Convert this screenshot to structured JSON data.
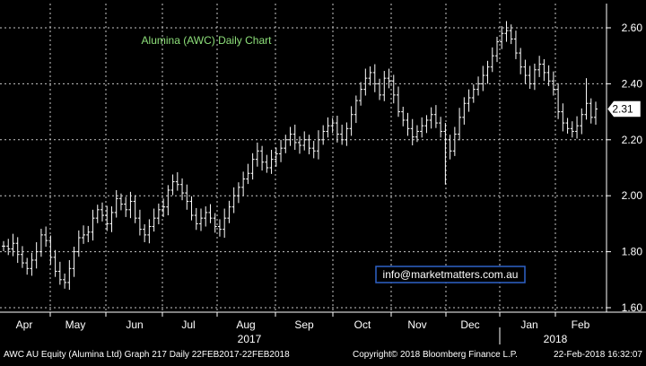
{
  "chart_data": {
    "type": "ohlc",
    "title": "Alumina (AWC) Daily Chart",
    "watermark": "info@marketmatters.com.au",
    "ylim": [
      1.6,
      2.65
    ],
    "yticks": [
      "2.60",
      "2.40",
      "2.20",
      "2.00",
      "1.80",
      "1.60"
    ],
    "ytick_values": [
      2.6,
      2.4,
      2.2,
      2.0,
      1.8,
      1.6
    ],
    "last_price": "2.31",
    "last_price_value": 2.31,
    "months": [
      "Apr",
      "May",
      "Jun",
      "Jul",
      "Aug",
      "Sep",
      "Oct",
      "Nov",
      "Dec",
      "Jan",
      "Feb"
    ],
    "years": [
      "2017",
      "2018"
    ],
    "grid": true,
    "series": [
      {
        "closes": [
          1.82,
          1.81,
          1.83,
          1.79,
          1.76,
          1.74,
          1.77,
          1.8,
          1.86,
          1.84,
          1.78,
          1.73,
          1.7,
          1.69,
          1.74,
          1.8,
          1.85,
          1.86,
          1.87,
          1.92,
          1.95,
          1.93,
          1.9,
          1.94,
          1.99,
          1.97,
          1.95,
          1.98,
          1.92,
          1.88,
          1.86,
          1.89,
          1.92,
          1.95,
          1.96,
          2.02,
          2.05,
          2.04,
          2.01,
          1.98,
          1.93,
          1.9,
          1.92,
          1.94,
          1.92,
          1.89,
          1.88,
          1.92,
          1.96,
          2.0,
          2.03,
          2.06,
          2.08,
          2.13,
          2.16,
          2.12,
          2.1,
          2.13,
          2.15,
          2.17,
          2.2,
          2.22,
          2.19,
          2.18,
          2.2,
          2.17,
          2.16,
          2.2,
          2.23,
          2.25,
          2.26,
          2.22,
          2.2,
          2.24,
          2.29,
          2.34,
          2.38,
          2.42,
          2.44,
          2.4,
          2.36,
          2.42,
          2.41,
          2.36,
          2.3,
          2.27,
          2.24,
          2.21,
          2.23,
          2.25,
          2.27,
          2.29,
          2.26,
          2.23,
          2.2,
          2.16,
          2.22,
          2.28,
          2.33,
          2.35,
          2.38,
          2.4,
          2.43,
          2.46,
          2.5,
          2.55,
          2.58,
          2.59,
          2.56,
          2.51,
          2.46,
          2.43,
          2.4,
          2.45,
          2.47,
          2.44,
          2.41,
          2.38,
          2.3,
          2.26,
          2.24,
          2.23,
          2.25,
          2.29,
          2.33,
          2.28,
          2.31
        ]
      }
    ]
  },
  "footer": {
    "left": "AWC AU Equity (Alumina Ltd) Graph 217  Daily 22FEB2017-22FEB2018",
    "mid": "Copyright© 2018 Bloomberg Finance L.P.",
    "right": "22-Feb-2018 16:32:07"
  }
}
